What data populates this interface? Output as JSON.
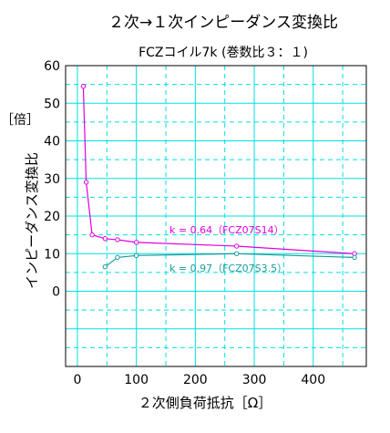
{
  "chart_data": {
    "type": "line",
    "title": "２次→１次インピーダンス変換比",
    "subtitle": "FCZコイル7k (巻数比３：１)",
    "xlabel": "２次側負荷抵抗［Ω］",
    "ylabel": "インピーダンス変換比",
    "yunit": "［倍］",
    "xlim": [
      -20,
      490
    ],
    "ylim": [
      -20,
      60
    ],
    "x_ticks": [
      0,
      100,
      200,
      300,
      400
    ],
    "y_ticks": [
      0,
      10,
      20,
      30,
      40,
      50,
      60
    ],
    "grid": true,
    "series": [
      {
        "name": "k = 0.64（FCZ07S14）",
        "color": "#e000e0",
        "x": [
          10,
          15,
          25,
          47,
          68,
          100,
          270,
          470
        ],
        "y": [
          54.5,
          29,
          15,
          14,
          13.7,
          13,
          12,
          10
        ]
      },
      {
        "name": "k = 0.97（FCZ07S3.5）",
        "color": "#1a9a9a",
        "x": [
          47,
          68,
          100,
          270,
          470
        ],
        "y": [
          6.5,
          9,
          9.5,
          10,
          9
        ]
      }
    ]
  },
  "colors": {
    "grid": "#00e0e0",
    "axis": "#000000",
    "text": "#000000"
  }
}
